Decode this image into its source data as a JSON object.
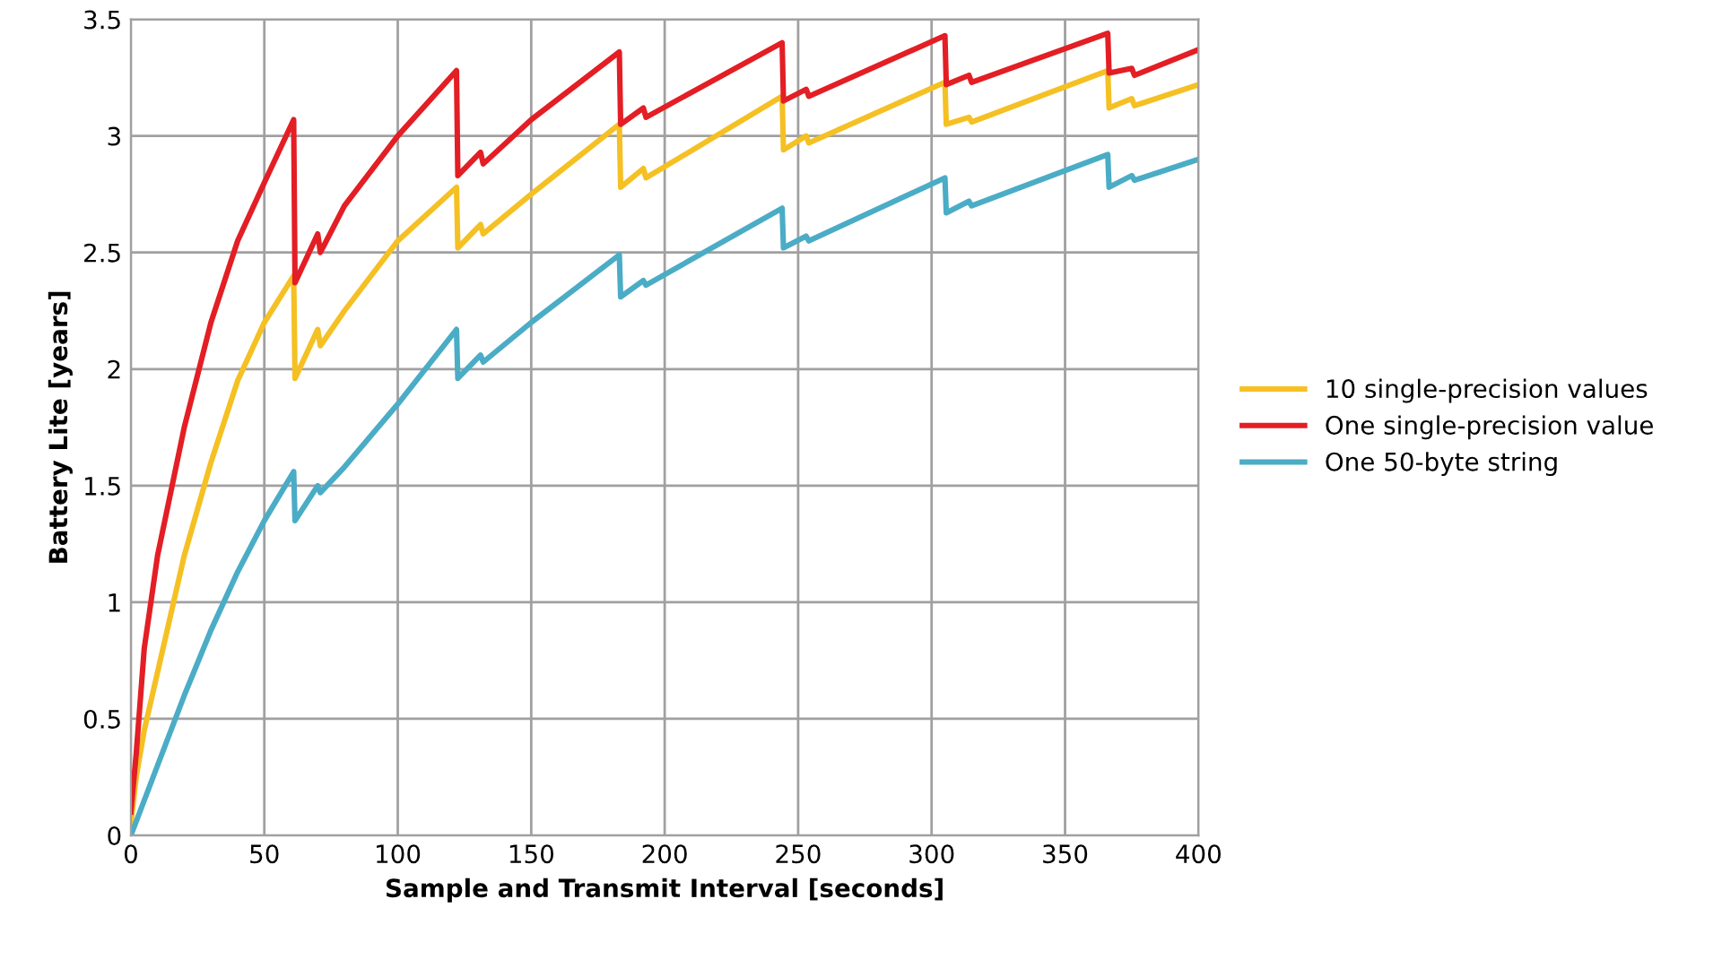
{
  "chart_data": {
    "type": "line",
    "xlabel": "Sample and Transmit Interval [seconds]",
    "ylabel": "Battery Lite [years]",
    "xlim": [
      0,
      400
    ],
    "xticks": [
      0,
      50,
      100,
      150,
      200,
      250,
      300,
      350,
      400
    ],
    "ylim": [
      0,
      3.5
    ],
    "yticks": [
      0,
      0.5,
      1,
      1.5,
      2,
      2.5,
      3,
      3.5
    ],
    "grid": true,
    "legend": "right",
    "marker": "none",
    "line_style": "solid",
    "series": [
      {
        "name": "10 single-precision values",
        "color": "#f5c023",
        "x": [
          0,
          2,
          5,
          10,
          20,
          30,
          40,
          50,
          61,
          61.5,
          70,
          71,
          80,
          100,
          122,
          122.5,
          131,
          132,
          150,
          183,
          183.5,
          192,
          193,
          244,
          244.5,
          253,
          254,
          305,
          305.5,
          314,
          315,
          366,
          366.5,
          375,
          376,
          400
        ],
        "values": [
          0.05,
          0.25,
          0.45,
          0.7,
          1.2,
          1.6,
          1.95,
          2.2,
          2.4,
          1.96,
          2.17,
          2.1,
          2.25,
          2.55,
          2.78,
          2.52,
          2.62,
          2.58,
          2.75,
          3.05,
          2.78,
          2.86,
          2.82,
          3.17,
          2.94,
          3.0,
          2.97,
          3.23,
          3.05,
          3.08,
          3.06,
          3.28,
          3.12,
          3.16,
          3.13,
          3.22
        ]
      },
      {
        "name": "One single-precision value",
        "color": "#e31e24",
        "x": [
          0,
          2,
          5,
          10,
          20,
          30,
          40,
          50,
          61,
          61.5,
          70,
          71,
          80,
          100,
          122,
          122.5,
          131,
          132,
          150,
          183,
          183.5,
          192,
          193,
          244,
          244.5,
          253,
          254,
          305,
          305.5,
          314,
          315,
          366,
          366.5,
          375,
          376,
          400
        ],
        "values": [
          0.1,
          0.35,
          0.8,
          1.2,
          1.75,
          2.2,
          2.55,
          2.8,
          3.07,
          2.37,
          2.58,
          2.5,
          2.7,
          3.0,
          3.28,
          2.83,
          2.93,
          2.88,
          3.07,
          3.36,
          3.05,
          3.12,
          3.08,
          3.4,
          3.15,
          3.2,
          3.17,
          3.43,
          3.22,
          3.26,
          3.23,
          3.44,
          3.27,
          3.29,
          3.26,
          3.37
        ]
      },
      {
        "name": "One 50-byte string",
        "color": "#4bacc6",
        "x": [
          0,
          10,
          20,
          30,
          40,
          50,
          61,
          61.5,
          70,
          71,
          80,
          100,
          122,
          122.5,
          131,
          132,
          150,
          183,
          183.5,
          192,
          193,
          244,
          244.5,
          253,
          254,
          305,
          305.5,
          314,
          315,
          366,
          366.5,
          375,
          376,
          400
        ],
        "values": [
          0.0,
          0.3,
          0.6,
          0.88,
          1.13,
          1.35,
          1.56,
          1.35,
          1.5,
          1.47,
          1.58,
          1.85,
          2.17,
          1.96,
          2.06,
          2.03,
          2.2,
          2.49,
          2.31,
          2.38,
          2.36,
          2.69,
          2.52,
          2.57,
          2.55,
          2.82,
          2.67,
          2.72,
          2.7,
          2.92,
          2.78,
          2.83,
          2.81,
          2.9
        ]
      }
    ]
  }
}
